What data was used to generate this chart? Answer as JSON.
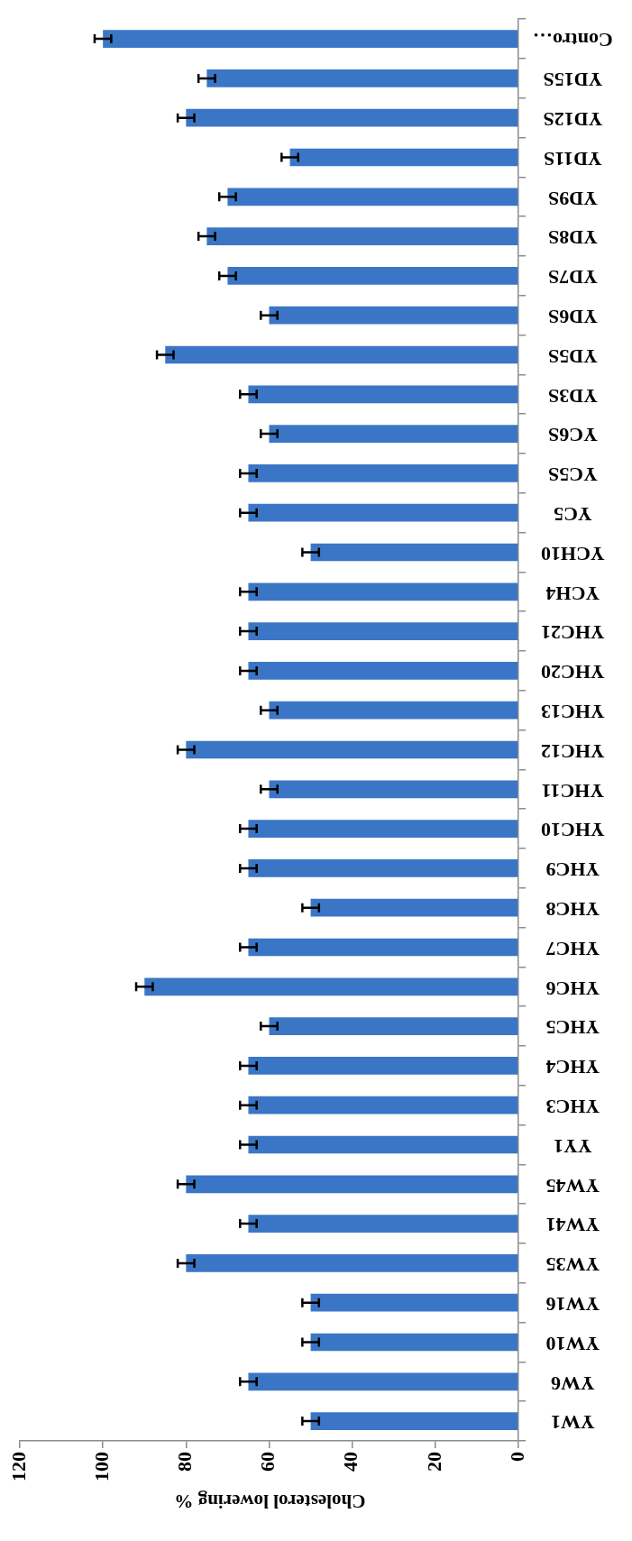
{
  "chart_data": {
    "type": "bar",
    "orientation": "horizontal",
    "xlabel": "Cholesterol lowering %",
    "categories": [
      "Contro…",
      "YD15S",
      "YD12S",
      "YD11S",
      "YD9S",
      "YD8S",
      "YD7S",
      "YD6S",
      "YD5S",
      "YD3S",
      "YC6S",
      "YC5S",
      "YC5",
      "YCH10",
      "YCH4",
      "YHC21",
      "YHC20",
      "YHC13",
      "YHC12",
      "YHC11",
      "YHC10",
      "YHC9",
      "YHC8",
      "YHC7",
      "YHC6",
      "YHC5",
      "YHC4",
      "YHC3",
      "YY1",
      "YW45",
      "YW41",
      "YW35",
      "YW16",
      "YW10",
      "YW6",
      "YW1"
    ],
    "values": [
      100,
      75,
      80,
      55,
      70,
      75,
      70,
      60,
      85,
      65,
      60,
      65,
      65,
      50,
      65,
      65,
      65,
      60,
      80,
      60,
      65,
      65,
      50,
      65,
      90,
      60,
      65,
      65,
      65,
      80,
      65,
      80,
      50,
      50,
      65,
      50
    ],
    "errors": [
      2,
      2,
      2,
      2,
      2,
      2,
      2,
      2,
      2,
      2,
      2,
      2,
      2,
      2,
      2,
      2,
      2,
      2,
      2,
      2,
      2,
      2,
      2,
      2,
      2,
      2,
      2,
      2,
      2,
      2,
      2,
      2,
      2,
      2,
      2,
      2
    ],
    "color": "#3b76c6",
    "xlim": [
      120,
      0
    ],
    "xticks": [
      120,
      100,
      80,
      60,
      40,
      20,
      0
    ],
    "grid": false,
    "legend": false
  }
}
